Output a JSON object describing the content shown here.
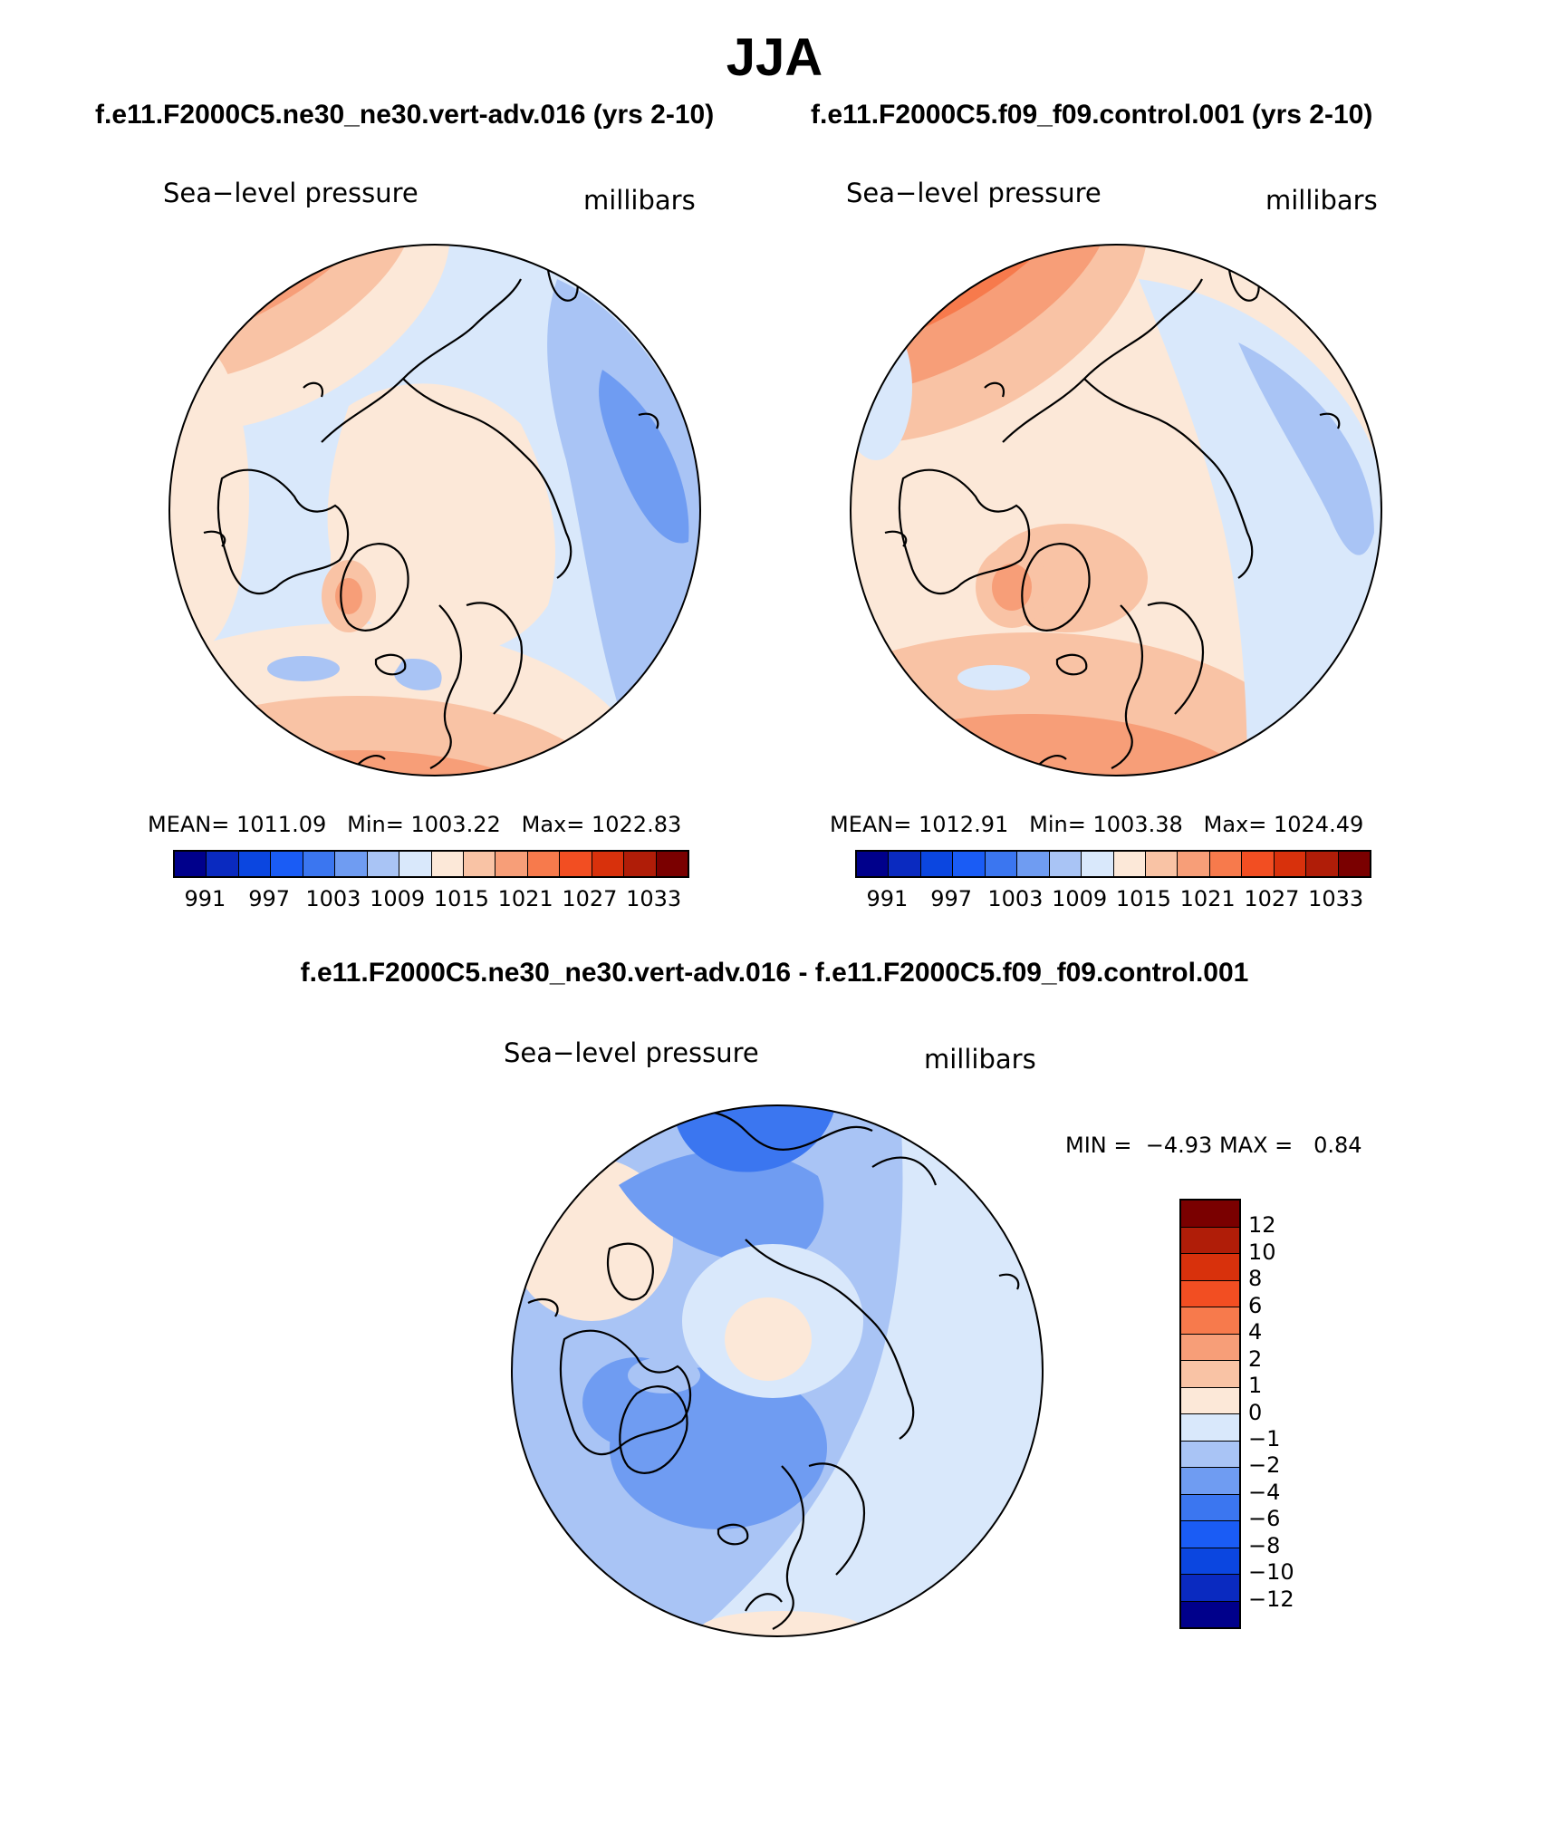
{
  "title": "JJA",
  "panels": [
    {
      "title": "f.e11.F2000C5.ne30_ne30.vert-adv.016 (yrs 2-10)",
      "variable": "Sea−level pressure",
      "units": "millibars",
      "stats": {
        "mean_label": "MEAN=",
        "mean": "1011.09",
        "min_label": "Min=",
        "min": "1003.22",
        "max_label": "Max=",
        "max": "1022.83"
      }
    },
    {
      "title": "f.e11.F2000C5.f09_f09.control.001 (yrs 2-10)",
      "variable": "Sea−level pressure",
      "units": "millibars",
      "stats": {
        "mean_label": "MEAN=",
        "mean": "1012.91",
        "min_label": "Min=",
        "min": "1003.38",
        "max_label": "Max=",
        "max": "1024.49"
      }
    },
    {
      "title": "f.e11.F2000C5.ne30_ne30.vert-adv.016 - f.e11.F2000C5.f09_f09.control.001",
      "variable": "Sea−level pressure",
      "units": "millibars",
      "stats": {
        "min_label": "MIN =",
        "min": "−4.93",
        "max_label": "MAX =",
        "max": "0.84"
      }
    }
  ],
  "colorbar_abs": {
    "colors": [
      "#00008b",
      "#0a2ac0",
      "#0b46e0",
      "#1a5cf5",
      "#3b76f0",
      "#6f9cf2",
      "#a9c4f5",
      "#d9e8fb",
      "#fce8d8",
      "#f9c3a5",
      "#f79e78",
      "#f77a4c",
      "#f24e22",
      "#d8310c",
      "#b01d08",
      "#7a0000"
    ],
    "tick_labels": [
      "991",
      "997",
      "1003",
      "1009",
      "1015",
      "1021",
      "1027",
      "1033"
    ]
  },
  "colorbar_diff": {
    "colors": [
      "#7a0000",
      "#b01d08",
      "#d8310c",
      "#f24e22",
      "#f77a4c",
      "#f79e78",
      "#f9c3a5",
      "#fce8d8",
      "#d9e8fb",
      "#a9c4f5",
      "#6f9cf2",
      "#3b76f0",
      "#1a5cf5",
      "#0b46e0",
      "#0a2ac0",
      "#00008b"
    ],
    "tick_labels": [
      "12",
      "10",
      "8",
      "6",
      "4",
      "2",
      "1",
      "0",
      "−1",
      "−2",
      "−4",
      "−6",
      "−8",
      "−10",
      "−12"
    ]
  },
  "map_colors": {
    "orange_light": "#fce8d8",
    "orange_mid": "#f9c3a5",
    "orange_deep": "#f79e78",
    "orange_dark": "#f77a4c",
    "blue_pale": "#d9e8fb",
    "blue_light": "#a9c4f5",
    "blue_mid": "#6f9cf2",
    "blue_deep": "#3b76f0"
  }
}
